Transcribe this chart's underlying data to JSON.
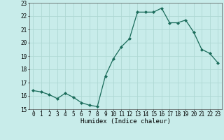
{
  "x": [
    0,
    1,
    2,
    3,
    4,
    5,
    6,
    7,
    8,
    9,
    10,
    11,
    12,
    13,
    14,
    15,
    16,
    17,
    18,
    19,
    20,
    21,
    22,
    23
  ],
  "y": [
    16.4,
    16.3,
    16.1,
    15.8,
    16.2,
    15.9,
    15.5,
    15.3,
    15.2,
    17.5,
    18.8,
    19.7,
    20.3,
    22.3,
    22.3,
    22.3,
    22.6,
    21.5,
    21.5,
    21.7,
    20.8,
    19.5,
    19.2,
    18.5
  ],
  "line_color": "#1a6b5a",
  "marker_color": "#1a6b5a",
  "bg_color": "#c8ecea",
  "grid_color": "#aed8d4",
  "xlabel": "Humidex (Indice chaleur)",
  "ylim": [
    15,
    23
  ],
  "xlim": [
    -0.5,
    23.5
  ],
  "yticks": [
    15,
    16,
    17,
    18,
    19,
    20,
    21,
    22,
    23
  ],
  "xticks": [
    0,
    1,
    2,
    3,
    4,
    5,
    6,
    7,
    8,
    9,
    10,
    11,
    12,
    13,
    14,
    15,
    16,
    17,
    18,
    19,
    20,
    21,
    22,
    23
  ],
  "xlabel_fontsize": 6.5,
  "tick_fontsize": 5.5,
  "marker_size": 2.0,
  "line_width": 0.9
}
